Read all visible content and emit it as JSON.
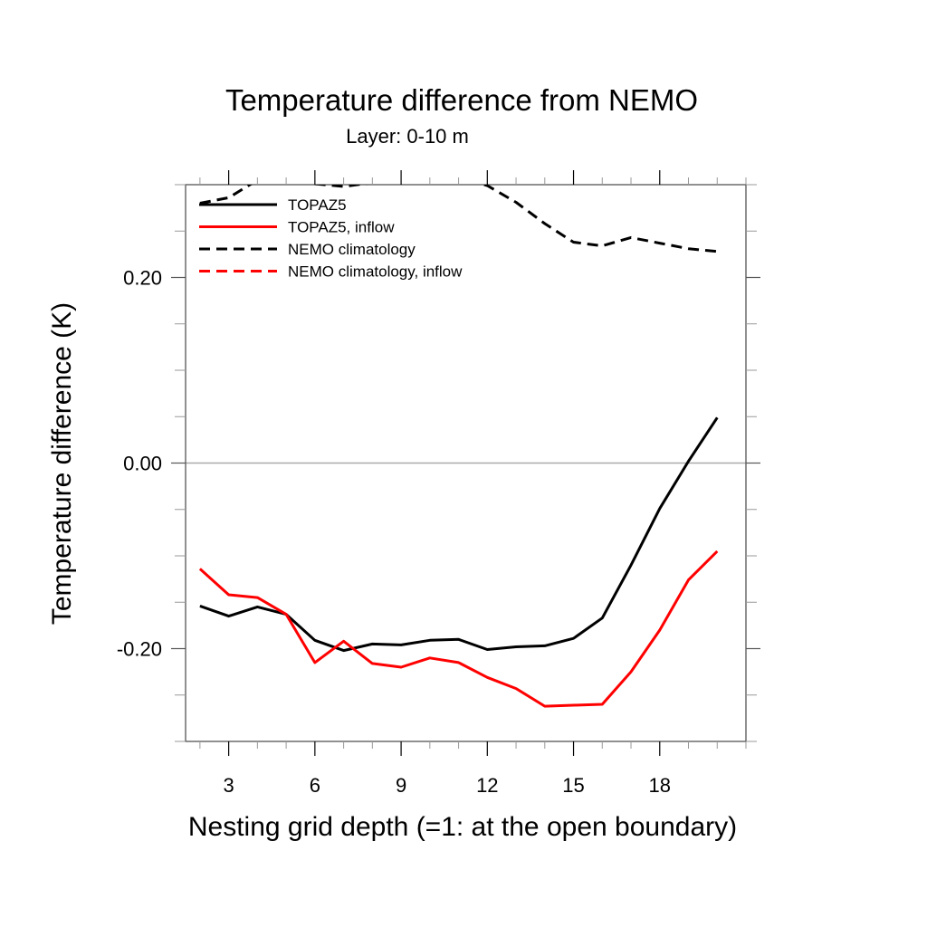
{
  "chart_data": {
    "type": "line",
    "title": "Temperature difference from NEMO",
    "subtitle": "Layer: 0-10 m",
    "xlabel": "Nesting grid depth (=1: at the open boundary)",
    "ylabel": "Temperature difference (K)",
    "xlim": [
      1.5,
      21
    ],
    "ylim": [
      -0.3,
      0.3
    ],
    "x_ticks": [
      3,
      6,
      9,
      12,
      15,
      18
    ],
    "x_tick_labels": [
      "3",
      "6",
      "9",
      "12",
      "15",
      "18"
    ],
    "x_minor_step": 1,
    "y_ticks": [
      -0.2,
      0.0,
      0.2
    ],
    "y_tick_labels": [
      "-0.20",
      "0.00",
      "0.20"
    ],
    "y_minor_step": 0.05,
    "zero_line": true,
    "grid": false,
    "legend_position": "top-left",
    "x": [
      2,
      3,
      4,
      5,
      6,
      7,
      8,
      9,
      10,
      11,
      12,
      13,
      14,
      15,
      16,
      17,
      18,
      19,
      20
    ],
    "series": [
      {
        "name": "TOPAZ5",
        "color": "#000000",
        "dash": "solid",
        "values": [
          -0.154,
          -0.165,
          -0.155,
          -0.163,
          -0.191,
          -0.202,
          -0.195,
          -0.196,
          -0.191,
          -0.19,
          -0.201,
          -0.198,
          -0.197,
          -0.189,
          -0.167,
          -0.11,
          -0.049,
          0.002,
          0.049
        ]
      },
      {
        "name": "TOPAZ5, inflow",
        "color": "#ff0000",
        "dash": "solid",
        "values": [
          -0.114,
          -0.142,
          -0.145,
          -0.163,
          -0.215,
          -0.192,
          -0.216,
          -0.22,
          -0.21,
          -0.215,
          -0.231,
          -0.243,
          -0.262,
          -0.261,
          -0.26,
          -0.225,
          -0.18,
          -0.126,
          -0.095
        ]
      },
      {
        "name": "NEMO climatology",
        "color": "#000000",
        "dash": "dashed",
        "values": [
          0.28,
          0.286,
          0.305,
          0.303,
          0.301,
          0.298,
          0.302,
          0.31,
          0.312,
          0.308,
          0.299,
          0.281,
          0.258,
          0.238,
          0.234,
          0.243,
          0.237,
          0.231,
          0.228
        ]
      },
      {
        "name": "NEMO climatology, inflow",
        "color": "#ff0000",
        "dash": "dashed",
        "values": []
      }
    ]
  }
}
